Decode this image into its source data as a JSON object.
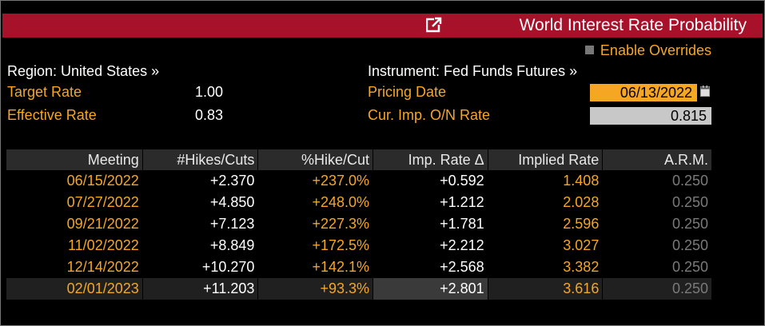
{
  "window": {
    "title": "World Interest Rate Probability"
  },
  "override": {
    "label": "Enable Overrides"
  },
  "region": {
    "label": "Region: United States »"
  },
  "instrument": {
    "label": "Instrument: Fed Funds Futures »"
  },
  "target_rate": {
    "label": "Target Rate",
    "value": "1.00"
  },
  "effective_rate": {
    "label": "Effective Rate",
    "value": "0.83"
  },
  "pricing_date": {
    "label": "Pricing Date",
    "value": "06/13/2022"
  },
  "cur_imp_rate": {
    "label": "Cur. Imp. O/N Rate",
    "value": "0.815"
  },
  "table": {
    "headers": [
      "Meeting",
      "#Hikes/Cuts",
      "%Hike/Cut",
      "Imp. Rate Δ",
      "Implied Rate",
      "A.R.M."
    ],
    "rows": [
      [
        "06/15/2022",
        "+2.370",
        "+237.0%",
        "+0.592",
        "1.408",
        "0.250"
      ],
      [
        "07/27/2022",
        "+4.850",
        "+248.0%",
        "+1.212",
        "2.028",
        "0.250"
      ],
      [
        "09/21/2022",
        "+7.123",
        "+227.3%",
        "+1.781",
        "2.596",
        "0.250"
      ],
      [
        "11/02/2022",
        "+8.849",
        "+172.5%",
        "+2.212",
        "3.027",
        "0.250"
      ],
      [
        "12/14/2022",
        "+10.270",
        "+142.1%",
        "+2.568",
        "3.382",
        "0.250"
      ],
      [
        "02/01/2023",
        "+11.203",
        "+93.3%",
        "+2.801",
        "3.616",
        "0.250"
      ]
    ]
  },
  "colors": {
    "title_bar": "#a8112a",
    "accent": "#f5a623",
    "date_field": "#f5a623",
    "rate_field": "#c8c8c8"
  },
  "icons": {
    "launch": "launch-icon",
    "calendar": "calendar-icon",
    "checkbox": "checkbox-icon"
  }
}
